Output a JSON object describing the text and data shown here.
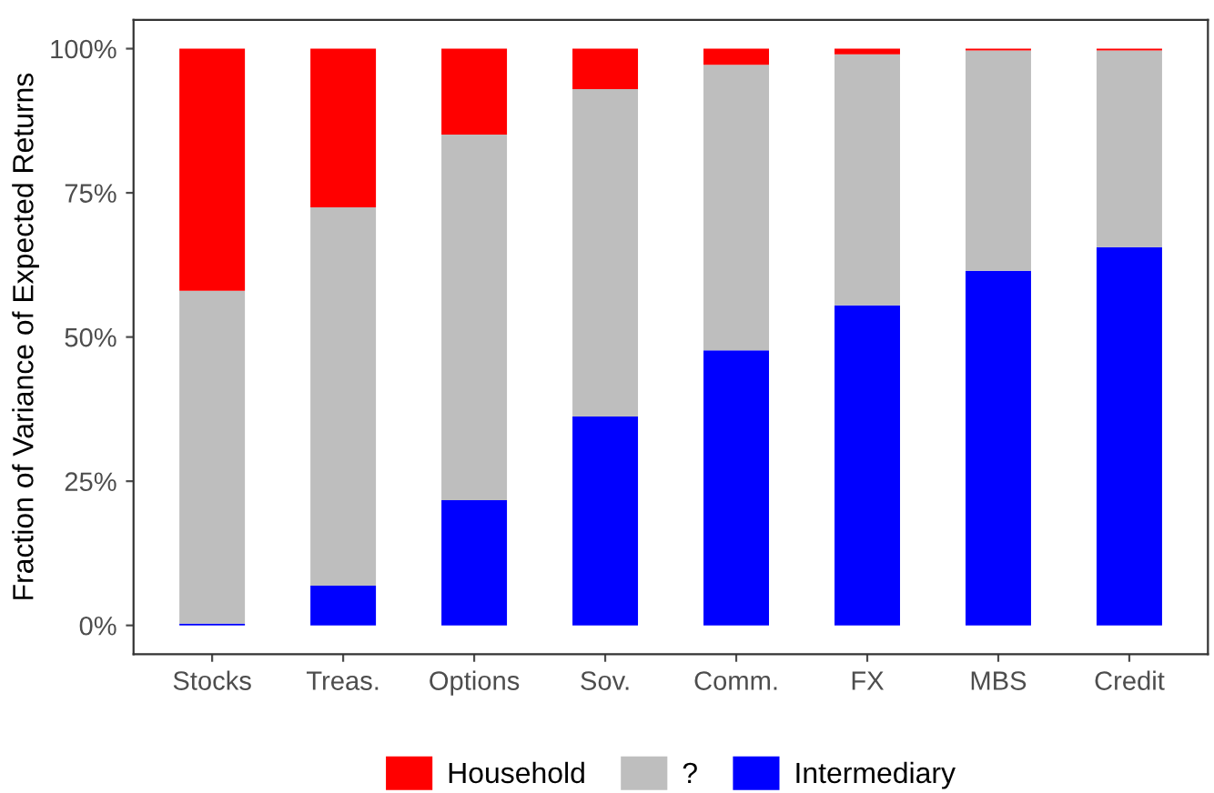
{
  "chart_data": {
    "type": "bar",
    "stacked": true,
    "ylabel": "Fraction of Variance of Expected Returns",
    "categories": [
      "Stocks",
      "Treas.",
      "Options",
      "Sov.",
      "Comm.",
      "FX",
      "MBS",
      "Credit"
    ],
    "series": [
      {
        "name": "Intermediary",
        "color": "#0000ff",
        "values": [
          0.3,
          6.9,
          21.7,
          36.2,
          47.7,
          55.5,
          61.5,
          65.6
        ]
      },
      {
        "name": "?",
        "color": "#bebebe",
        "values": [
          57.7,
          65.6,
          63.4,
          56.8,
          49.5,
          43.5,
          38.2,
          34.1
        ]
      },
      {
        "name": "Household",
        "color": "#ff0000",
        "values": [
          42.0,
          27.5,
          14.9,
          7.0,
          2.8,
          1.0,
          0.3,
          0.3
        ]
      }
    ],
    "ylim": [
      -5,
      105
    ],
    "yticks": [
      {
        "value": 0,
        "label": "0%"
      },
      {
        "value": 25,
        "label": "25%"
      },
      {
        "value": 50,
        "label": "50%"
      },
      {
        "value": 75,
        "label": "75%"
      },
      {
        "value": 100,
        "label": "100%"
      }
    ],
    "grid": false,
    "legend": "bottom"
  }
}
